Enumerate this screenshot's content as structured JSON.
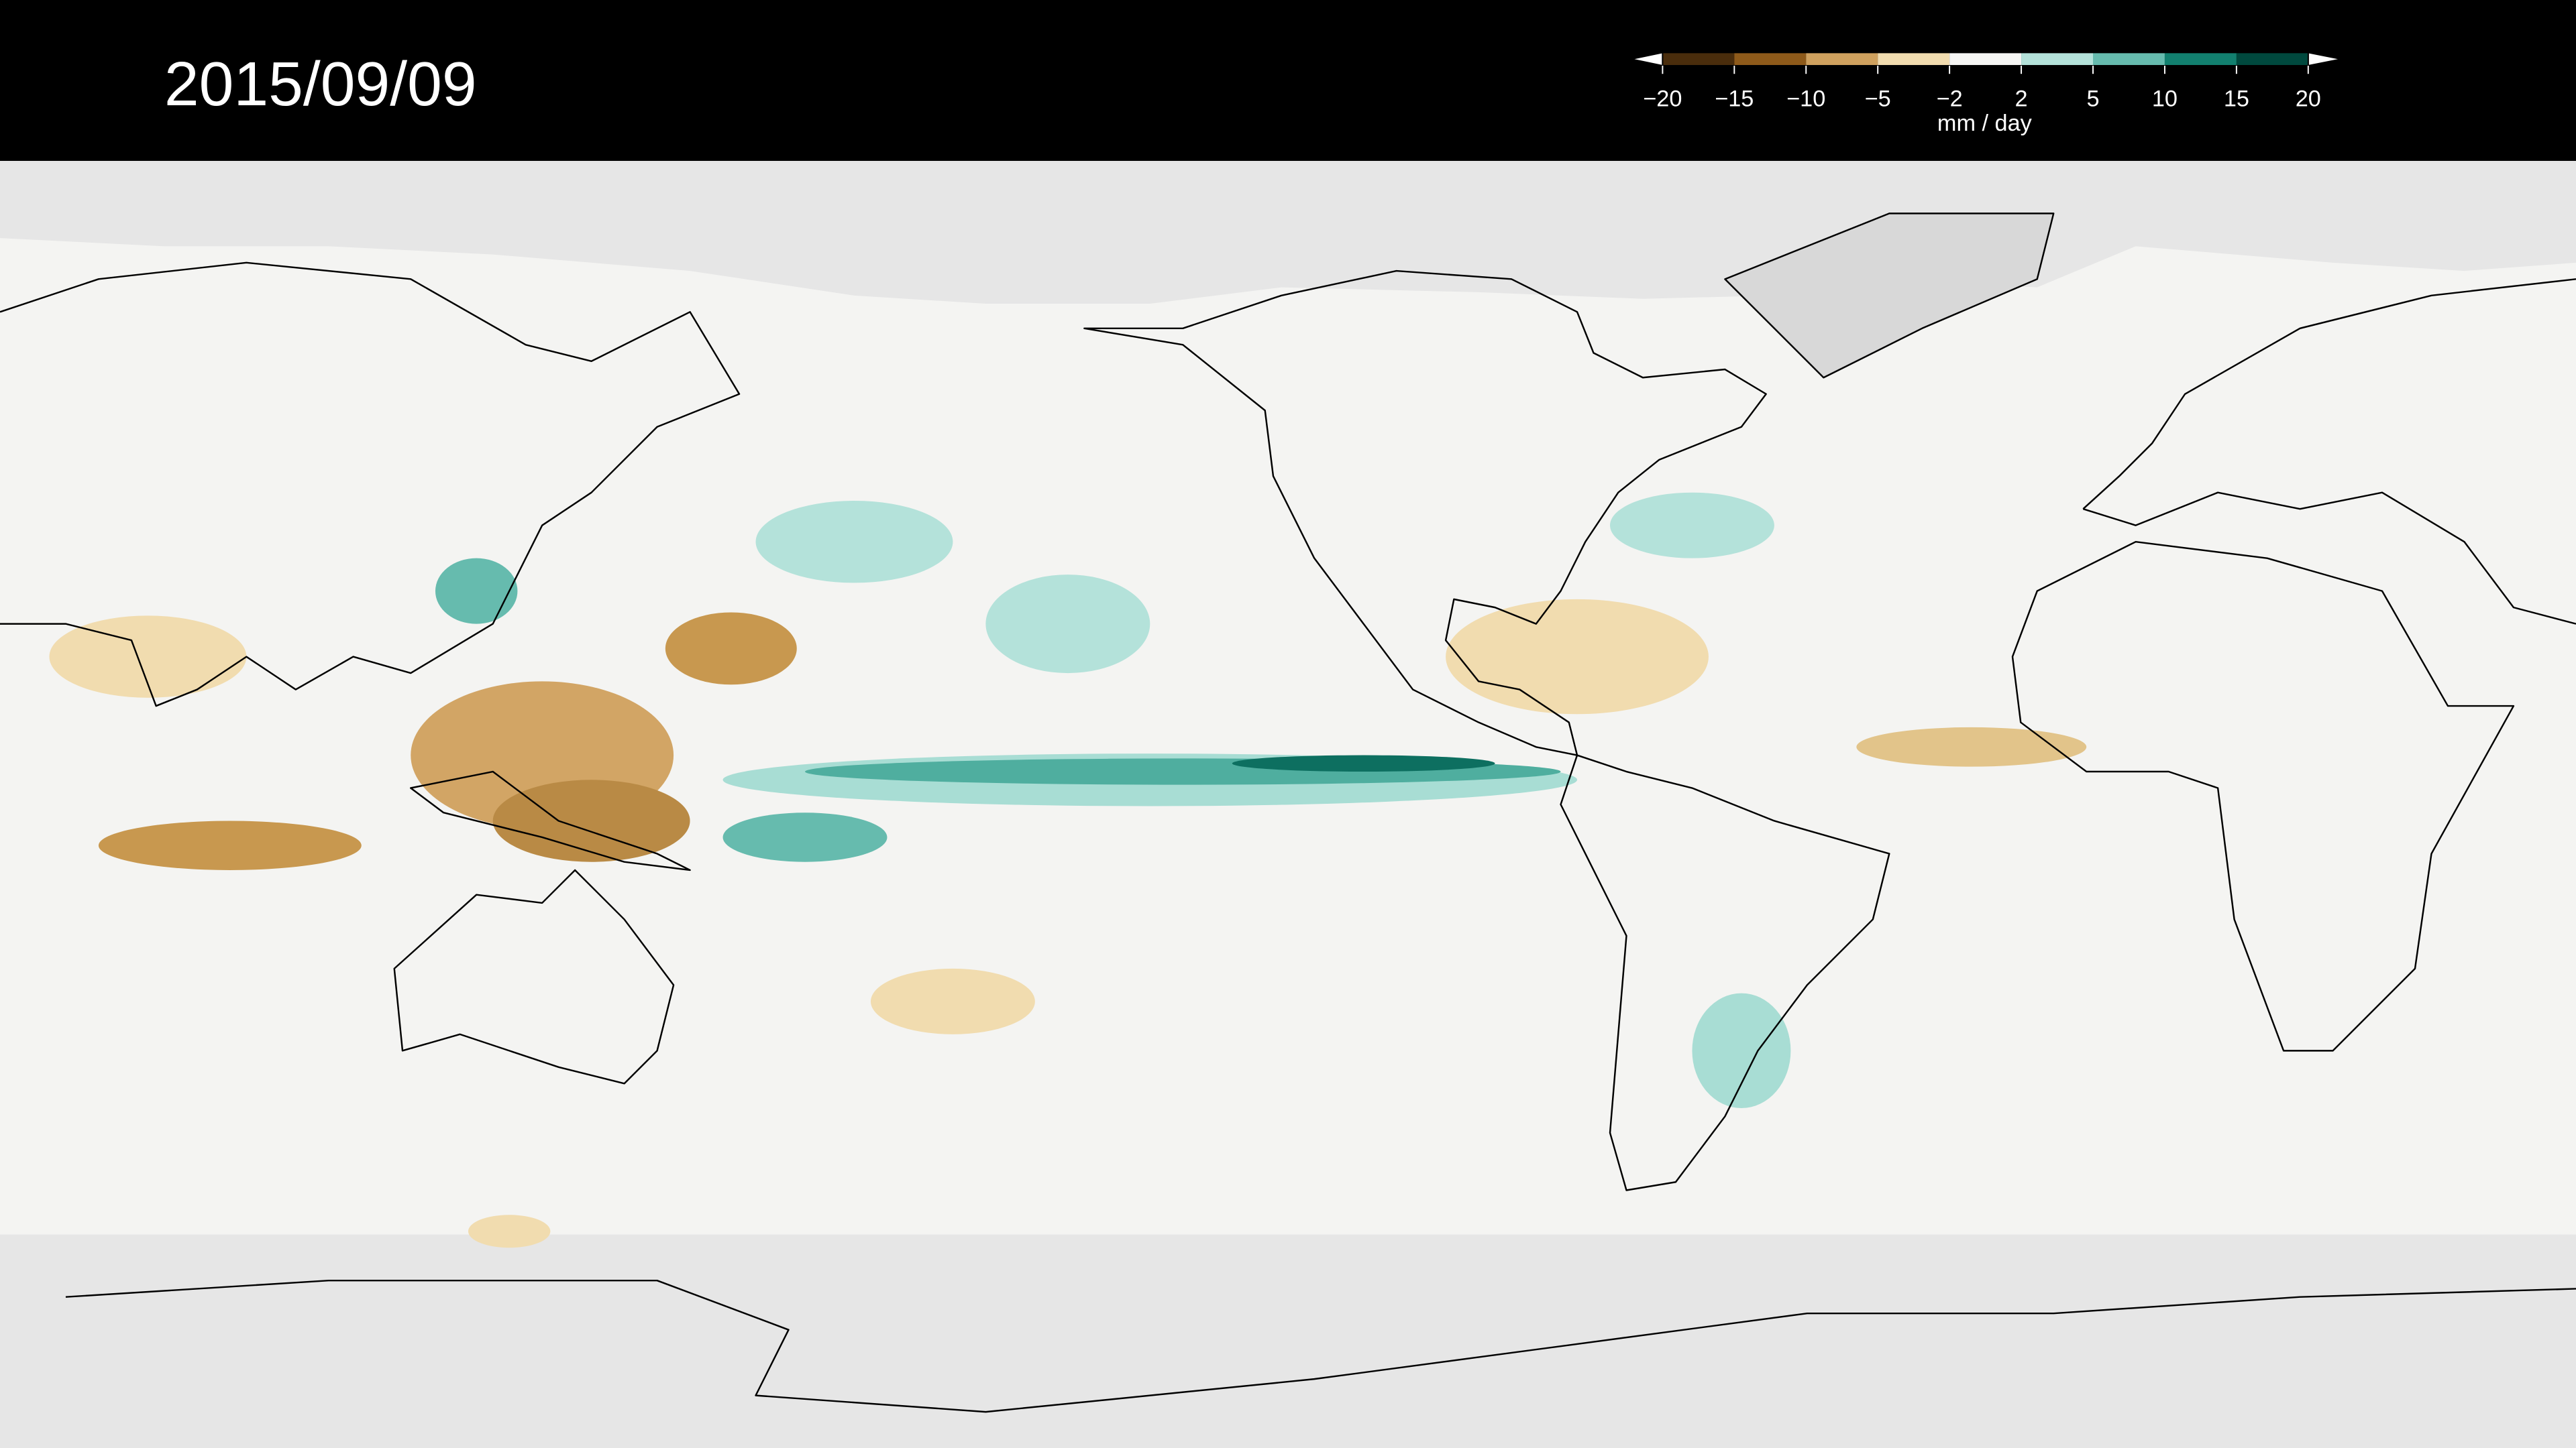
{
  "title": "2015/09/09",
  "colorbar": {
    "ticks": [
      {
        "value": -20,
        "label": "−20"
      },
      {
        "value": -15,
        "label": "−15"
      },
      {
        "value": -10,
        "label": "−10"
      },
      {
        "value": -5,
        "label": "−5"
      },
      {
        "value": -2,
        "label": "−2"
      },
      2,
      5,
      10,
      15,
      20
    ],
    "colors": [
      "#4a2d0c",
      "#8e5a1a",
      "#cfa15e",
      "#f1dcaf",
      "#f6f6f4",
      "#b4e2da",
      "#66bbae",
      "#12806f",
      "#00493e"
    ],
    "unit": "mm / day"
  }
}
